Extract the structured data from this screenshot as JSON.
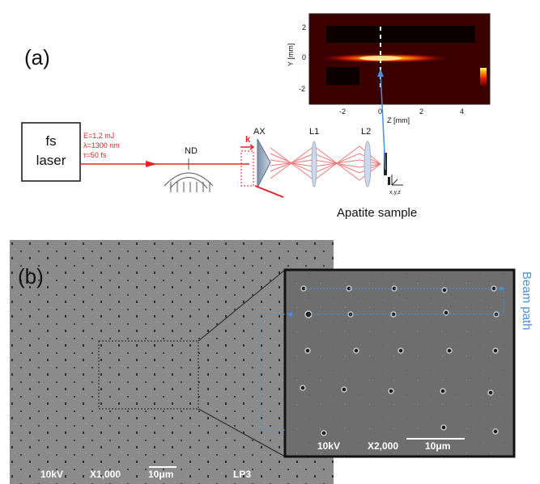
{
  "panel_a": {
    "label": "(a)",
    "laser_box": {
      "line1": "fs",
      "line2": "laser"
    },
    "params": [
      "E=1.2 mJ",
      "λ=1300 nm",
      "τ=50 fs"
    ],
    "labels": {
      "nd": "ND",
      "ax": "AX",
      "l1": "L1",
      "l2": "L2",
      "k": "k",
      "xyz": "x,y,z"
    },
    "sample_caption": "Apatite sample",
    "inset_plot": {
      "ylabel": "Y [mm]",
      "xlabel": "Z [mm]",
      "y_ticks": [
        "2",
        "0",
        "-2"
      ],
      "x_ticks": [
        "-2",
        "0",
        "2",
        "4"
      ]
    }
  },
  "panel_b": {
    "label": "(b)",
    "main_scale": {
      "kv": "10kV",
      "mag": "X1,000",
      "bar": "10μm",
      "id": "LP3"
    },
    "zoom_scale": {
      "kv": "10kV",
      "mag": "X2,000",
      "bar": "10μm"
    },
    "beam_path_label": "Beam path"
  },
  "colors": {
    "laser_red": "#e8212a",
    "beam_blue": "#4a90d9",
    "sem_gray": "#7a7a7a",
    "heatmap_bg": "#3a0000"
  }
}
